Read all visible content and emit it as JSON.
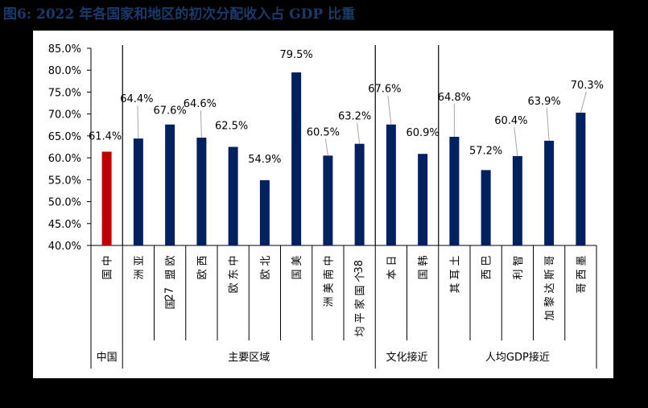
{
  "title": "图6:  2022 年各国家和地区的初次分配收入占 GDP 比重",
  "colors": {
    "highlight": "#c00000",
    "bar": "#002060",
    "leader": "#a6a6a6",
    "background": "#000000"
  },
  "chart_data": {
    "type": "bar",
    "title": "2022 年各国家和地区的初次分配收入占 GDP 比重",
    "xlabel": "",
    "ylabel": "",
    "ylim": [
      40,
      85
    ],
    "yticks": [
      "40.0%",
      "45.0%",
      "50.0%",
      "55.0%",
      "60.0%",
      "65.0%",
      "70.0%",
      "75.0%",
      "80.0%",
      "85.0%"
    ],
    "grid": false,
    "legend": null,
    "categories": [
      "中国",
      "亚洲",
      "欧盟27国",
      "西欧",
      "中东欧",
      "北欧",
      "美国",
      "中南美洲",
      "38个国家平均",
      "日本",
      "韩国",
      "土耳其",
      "巴西",
      "智利",
      "哥斯达黎加",
      "墨西哥"
    ],
    "values": [
      61.4,
      64.4,
      67.6,
      64.6,
      62.5,
      54.9,
      79.5,
      60.5,
      63.2,
      67.6,
      60.9,
      64.8,
      57.2,
      60.4,
      63.9,
      70.3
    ],
    "labels": [
      "61.4%",
      "64.4%",
      "67.6%",
      "64.6%",
      "62.5%",
      "54.9%",
      "79.5%",
      "60.5%",
      "63.2%",
      "67.6%",
      "60.9%",
      "64.8%",
      "57.2%",
      "60.4%",
      "63.9%",
      "70.3%"
    ],
    "groups": [
      {
        "name": "中国",
        "start": 0,
        "end": 0
      },
      {
        "name": "主要区域",
        "start": 1,
        "end": 8
      },
      {
        "name": "文化接近",
        "start": 9,
        "end": 10
      },
      {
        "name": "人均GDP接近",
        "start": 11,
        "end": 15
      }
    ],
    "highlighted_category": "中国"
  }
}
